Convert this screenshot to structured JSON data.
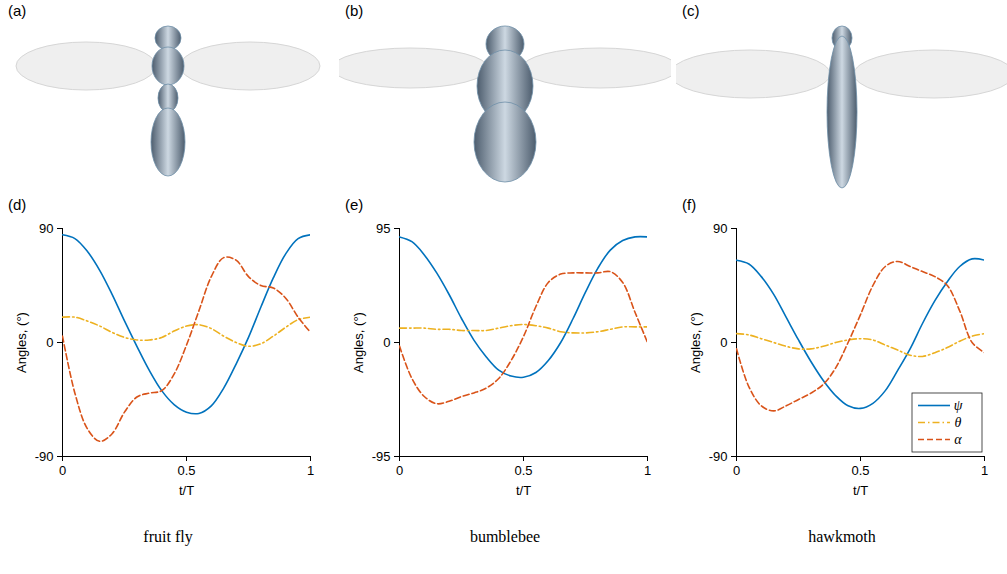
{
  "image_panels": [
    "(a)",
    "(b)",
    "(c)"
  ],
  "chart_data": [
    {
      "type": "line",
      "panel_label": "(d)",
      "caption": "fruit fly",
      "xlabel": "t/T",
      "ylabel": "Angles, (°)",
      "xlim": [
        0,
        1
      ],
      "xticks": [
        0,
        0.5,
        1
      ],
      "ylim": [
        -90,
        90
      ],
      "yticks": [
        -90,
        0,
        90
      ],
      "x": [
        0,
        0.05,
        0.1,
        0.15,
        0.2,
        0.25,
        0.3,
        0.35,
        0.4,
        0.45,
        0.5,
        0.55,
        0.6,
        0.65,
        0.7,
        0.75,
        0.8,
        0.85,
        0.9,
        0.95,
        1
      ],
      "series": [
        {
          "name": "ψ",
          "color": "#0072BD",
          "line_style": "solid",
          "values": [
            85,
            82,
            72,
            57,
            38,
            17,
            -3,
            -22,
            -38,
            -49,
            -55,
            -56,
            -50,
            -36,
            -17,
            4,
            28,
            51,
            70,
            82,
            85
          ]
        },
        {
          "name": "θ",
          "color": "#EDB120",
          "line_style": "dashdot",
          "values": [
            20,
            20,
            17,
            13,
            8,
            4,
            2,
            2,
            4,
            9,
            13,
            14,
            11,
            5,
            0,
            -3,
            -1,
            5,
            12,
            18,
            20
          ]
        },
        {
          "name": "α",
          "color": "#D95319",
          "line_style": "dashed",
          "values": [
            5,
            -40,
            -68,
            -78,
            -72,
            -55,
            -43,
            -40,
            -38,
            -25,
            -2,
            25,
            52,
            67,
            65,
            52,
            45,
            43,
            35,
            20,
            8
          ]
        }
      ]
    },
    {
      "type": "line",
      "panel_label": "(e)",
      "caption": "bumblebee",
      "xlabel": "t/T",
      "ylabel": "Angles, (°)",
      "xlim": [
        0,
        1
      ],
      "xticks": [
        0,
        0.5,
        1
      ],
      "ylim": [
        -95,
        95
      ],
      "yticks": [
        -95,
        0,
        95
      ],
      "x": [
        0,
        0.05,
        0.1,
        0.15,
        0.2,
        0.25,
        0.3,
        0.35,
        0.4,
        0.45,
        0.5,
        0.55,
        0.6,
        0.65,
        0.7,
        0.75,
        0.8,
        0.85,
        0.9,
        0.95,
        1
      ],
      "series": [
        {
          "name": "ψ",
          "color": "#0072BD",
          "line_style": "solid",
          "values": [
            88,
            84,
            73,
            58,
            40,
            20,
            2,
            -12,
            -23,
            -28,
            -29,
            -25,
            -15,
            0,
            20,
            42,
            62,
            77,
            85,
            88,
            88
          ]
        },
        {
          "name": "θ",
          "color": "#EDB120",
          "line_style": "dashdot",
          "values": [
            12,
            12,
            12,
            11,
            11,
            10,
            10,
            10,
            12,
            14,
            15,
            14,
            12,
            9,
            8,
            8,
            9,
            11,
            13,
            13,
            13
          ]
        },
        {
          "name": "α",
          "color": "#D95319",
          "line_style": "dashed",
          "values": [
            -3,
            -30,
            -45,
            -51,
            -49,
            -45,
            -42,
            -38,
            -30,
            -15,
            5,
            30,
            50,
            57,
            58,
            58,
            58,
            59,
            50,
            25,
            0
          ]
        }
      ]
    },
    {
      "type": "line",
      "panel_label": "(f)",
      "caption": "hawkmoth",
      "xlabel": "t/T",
      "ylabel": "Angles, (°)",
      "xlim": [
        0,
        1
      ],
      "xticks": [
        0,
        0.5,
        1
      ],
      "ylim": [
        -90,
        90
      ],
      "yticks": [
        -90,
        0,
        90
      ],
      "legend": "lower right",
      "x": [
        0,
        0.05,
        0.1,
        0.15,
        0.2,
        0.25,
        0.3,
        0.35,
        0.4,
        0.45,
        0.5,
        0.55,
        0.6,
        0.65,
        0.7,
        0.75,
        0.8,
        0.85,
        0.9,
        0.95,
        1
      ],
      "series": [
        {
          "name": "ψ",
          "color": "#0072BD",
          "line_style": "solid",
          "values": [
            65,
            62,
            52,
            38,
            20,
            2,
            -15,
            -30,
            -42,
            -50,
            -52,
            -48,
            -38,
            -22,
            -5,
            15,
            33,
            48,
            60,
            66,
            65
          ]
        },
        {
          "name": "θ",
          "color": "#EDB120",
          "line_style": "dashdot",
          "values": [
            7,
            6,
            3,
            0,
            -3,
            -5,
            -5,
            -3,
            0,
            2,
            3,
            2,
            -2,
            -6,
            -10,
            -11,
            -8,
            -4,
            1,
            5,
            7
          ]
        },
        {
          "name": "α",
          "color": "#D95319",
          "line_style": "dashed",
          "values": [
            -5,
            -35,
            -50,
            -54,
            -50,
            -45,
            -40,
            -33,
            -20,
            0,
            22,
            45,
            60,
            64,
            60,
            56,
            52,
            45,
            25,
            0,
            -8
          ]
        }
      ]
    }
  ]
}
